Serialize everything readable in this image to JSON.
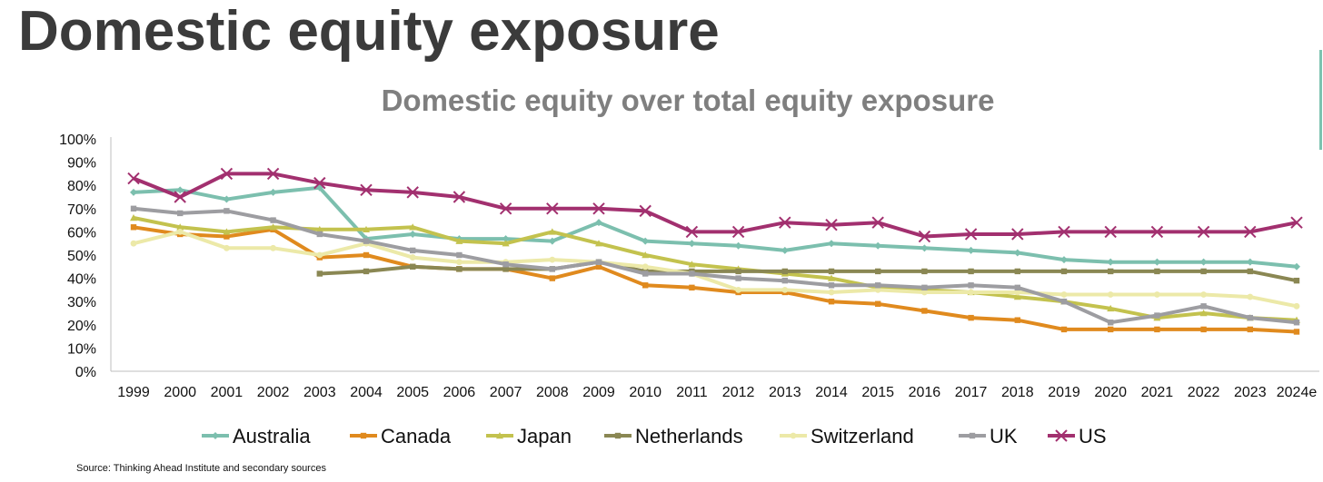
{
  "page": {
    "title": "Domestic equity exposure",
    "source": "Source: Thinking Ahead Institute and secondary sources"
  },
  "chart_data": {
    "type": "line",
    "title": "Domestic equity over total equity exposure",
    "xlabel": "",
    "ylabel": "",
    "ylim": [
      0,
      100
    ],
    "y_ticks": [
      "0%",
      "10%",
      "20%",
      "30%",
      "40%",
      "50%",
      "60%",
      "70%",
      "80%",
      "90%",
      "100%"
    ],
    "categories": [
      "1999",
      "2000",
      "2001",
      "2002",
      "2003",
      "2004",
      "2005",
      "2006",
      "2007",
      "2008",
      "2009",
      "2010",
      "2011",
      "2012",
      "2013",
      "2014",
      "2015",
      "2016",
      "2017",
      "2018",
      "2019",
      "2020",
      "2021",
      "2022",
      "2023",
      "2024e"
    ],
    "legend_position": "bottom",
    "grid": false,
    "series": [
      {
        "name": "Australia",
        "color": "#7cbfae",
        "marker": "diamond",
        "values": [
          77,
          78,
          74,
          77,
          79,
          57,
          59,
          57,
          57,
          56,
          64,
          56,
          55,
          54,
          52,
          55,
          54,
          53,
          52,
          51,
          48,
          47,
          47,
          47,
          47,
          45
        ]
      },
      {
        "name": "Canada",
        "color": "#e08a1e",
        "marker": "square",
        "values": [
          62,
          59,
          58,
          61,
          49,
          50,
          45,
          44,
          44,
          40,
          45,
          37,
          36,
          34,
          34,
          30,
          29,
          26,
          23,
          22,
          18,
          18,
          18,
          18,
          18,
          17
        ]
      },
      {
        "name": "Japan",
        "color": "#c3c24e",
        "marker": "triangle",
        "values": [
          66,
          62,
          60,
          62,
          61,
          61,
          62,
          56,
          55,
          60,
          55,
          50,
          46,
          44,
          42,
          40,
          36,
          35,
          34,
          32,
          30,
          27,
          23,
          25,
          23,
          22
        ]
      },
      {
        "name": "Netherlands",
        "color": "#8a8753",
        "marker": "square",
        "values": [
          null,
          null,
          null,
          null,
          42,
          43,
          45,
          44,
          44,
          44,
          47,
          43,
          43,
          43,
          43,
          43,
          43,
          43,
          43,
          43,
          43,
          43,
          43,
          43,
          43,
          39
        ]
      },
      {
        "name": "Switzerland",
        "color": "#ece9a8",
        "marker": "circle",
        "values": [
          55,
          60,
          53,
          53,
          50,
          55,
          49,
          47,
          47,
          48,
          47,
          45,
          42,
          35,
          35,
          34,
          35,
          34,
          34,
          34,
          33,
          33,
          33,
          33,
          32,
          28
        ]
      },
      {
        "name": "UK",
        "color": "#9d9da1",
        "marker": "square",
        "values": [
          70,
          68,
          69,
          65,
          59,
          56,
          52,
          50,
          46,
          44,
          47,
          42,
          42,
          40,
          39,
          37,
          37,
          36,
          37,
          36,
          30,
          21,
          24,
          28,
          23,
          21
        ]
      },
      {
        "name": "US",
        "color": "#a2306f",
        "marker": "x",
        "values": [
          83,
          75,
          85,
          85,
          81,
          78,
          77,
          75,
          70,
          70,
          70,
          69,
          60,
          60,
          64,
          63,
          64,
          58,
          59,
          59,
          60,
          60,
          60,
          60,
          60,
          64
        ]
      }
    ]
  }
}
